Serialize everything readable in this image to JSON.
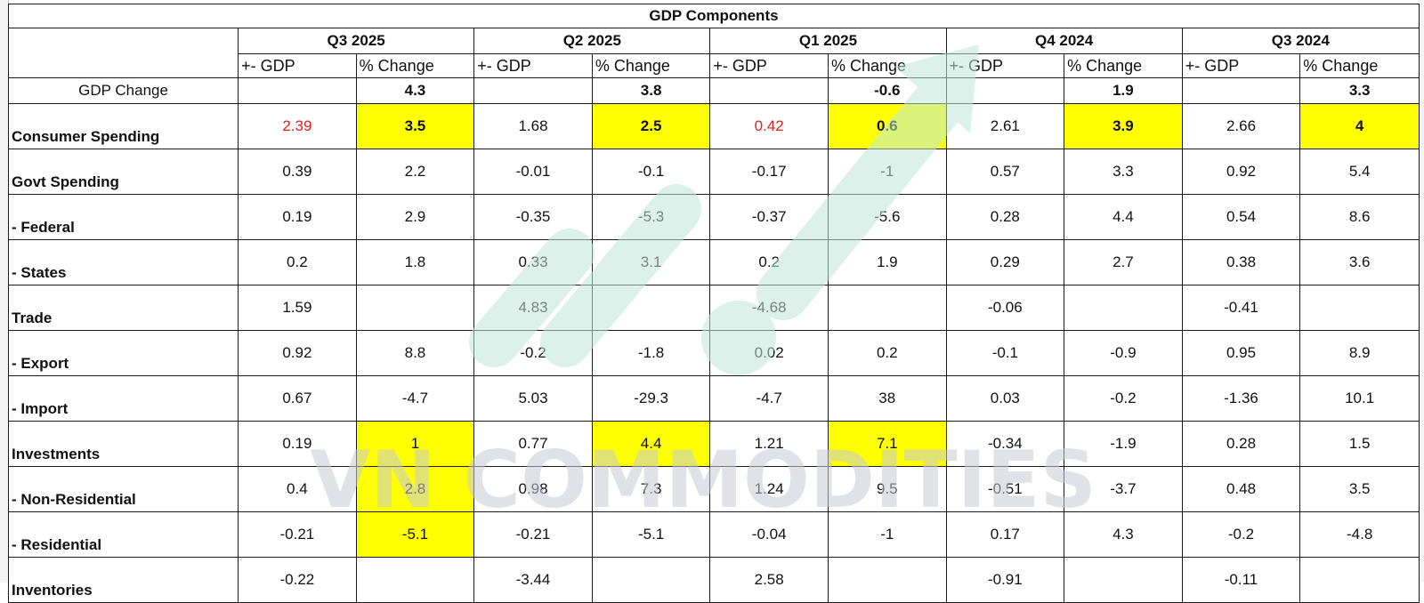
{
  "table": {
    "title": "GDP Components",
    "quarters": [
      "Q3 2025",
      "Q2 2025",
      "Q1 2025",
      "Q4 2024",
      "Q3 2024"
    ],
    "sub_gdp": "+- GDP",
    "sub_change": "% Change",
    "gdp_change": {
      "label": "GDP Change",
      "values": [
        "4.3",
        "3.8",
        "-0.6",
        "1.9",
        "3.3"
      ]
    },
    "rows": [
      {
        "label": "Consumer Spending",
        "cells": [
          "2.39",
          "3.5",
          "1.68",
          "2.5",
          "0.42",
          "0.6",
          "2.61",
          "3.9",
          "2.66",
          "4"
        ]
      },
      {
        "label": "Govt Spending",
        "cells": [
          "0.39",
          "2.2",
          "-0.01",
          "-0.1",
          "-0.17",
          "-1",
          "0.57",
          "3.3",
          "0.92",
          "5.4"
        ]
      },
      {
        "label": "- Federal",
        "cells": [
          "0.19",
          "2.9",
          "-0.35",
          "-5.3",
          "-0.37",
          "-5.6",
          "0.28",
          "4.4",
          "0.54",
          "8.6"
        ]
      },
      {
        "label": "- States",
        "cells": [
          "0.2",
          "1.8",
          "0.33",
          "3.1",
          "0.2",
          "1.9",
          "0.29",
          "2.7",
          "0.38",
          "3.6"
        ]
      },
      {
        "label": "Trade",
        "cells": [
          "1.59",
          "",
          "4.83",
          "",
          "-4.68",
          "",
          "-0.06",
          "",
          "-0.41",
          ""
        ]
      },
      {
        "label": "- Export",
        "cells": [
          "0.92",
          "8.8",
          "-0.2",
          "-1.8",
          "0.02",
          "0.2",
          "-0.1",
          "-0.9",
          "0.95",
          "8.9"
        ]
      },
      {
        "label": "- Import",
        "cells": [
          "0.67",
          "-4.7",
          "5.03",
          "-29.3",
          "-4.7",
          "38",
          "0.03",
          "-0.2",
          "-1.36",
          "10.1"
        ]
      },
      {
        "label": "Investments",
        "cells": [
          "0.19",
          "1",
          "0.77",
          "4.4",
          "1.21",
          "7.1",
          "-0.34",
          "-1.9",
          "0.28",
          "1.5"
        ]
      },
      {
        "label": "- Non-Residential",
        "cells": [
          "0.4",
          "2.8",
          "0.98",
          "7.3",
          "1.24",
          "9.5",
          "-0.51",
          "-3.7",
          "0.48",
          "3.5"
        ]
      },
      {
        "label": "- Residential",
        "cells": [
          "-0.21",
          "-5.1",
          "-0.21",
          "-5.1",
          "-0.04",
          "-1",
          "0.17",
          "4.3",
          "-0.2",
          "-4.8"
        ]
      },
      {
        "label": "Inventories",
        "cells": [
          "-0.22",
          "",
          "-3.44",
          "",
          "2.58",
          "",
          "-0.91",
          "",
          "-0.11",
          ""
        ]
      }
    ]
  },
  "watermark": {
    "text": "VN COMMODITIES",
    "text_color": "#c9ccd6",
    "arrow_color": "#bfe6da"
  },
  "colors": {
    "highlight": "#ffff00",
    "red_value": "#e02020"
  }
}
